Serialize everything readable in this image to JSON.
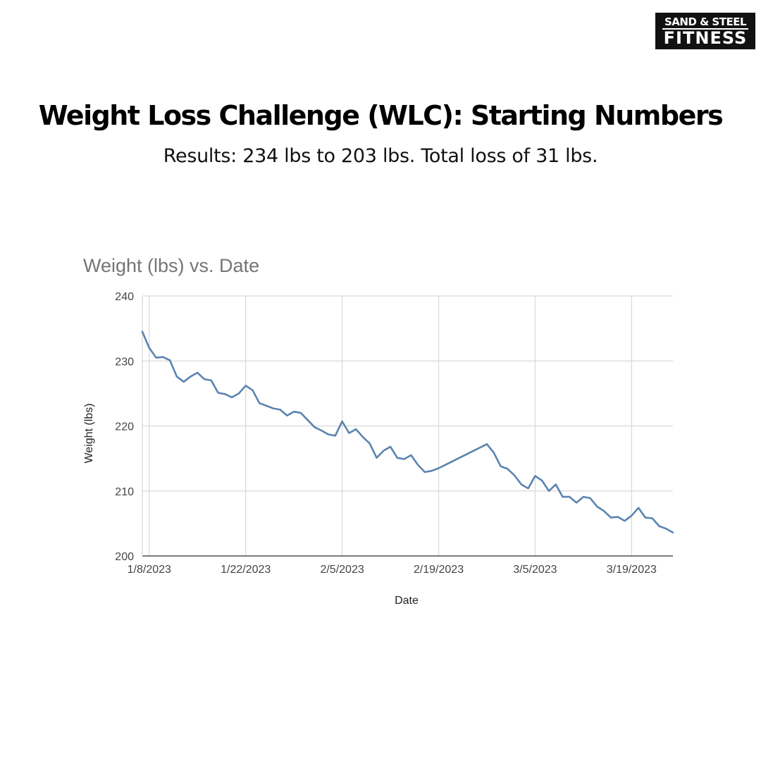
{
  "brand": {
    "line1": "SAND & STEEL",
    "line2": "FITNESS"
  },
  "header": {
    "title": "Weight Loss Challenge (WLC): Starting Numbers",
    "subtitle": "Results: 234 lbs to 203 lbs. Total loss of 31 lbs."
  },
  "colors": {
    "line": "#5b84b0",
    "grid": "#d9d9d9",
    "background": "#ffffff"
  },
  "chart_data": {
    "type": "line",
    "title": "Weight (lbs) vs. Date",
    "xlabel": "Date",
    "ylabel": "Weight (lbs)",
    "ylim": [
      200,
      240
    ],
    "xlim": [
      "2023-01-07",
      "2023-03-25"
    ],
    "yticks": [
      200,
      210,
      220,
      230,
      240
    ],
    "xticks": [
      "1/8/2023",
      "1/22/2023",
      "2/5/2023",
      "2/19/2023",
      "3/5/2023",
      "3/19/2023"
    ],
    "grid": true,
    "legend": "none",
    "series": [
      {
        "x": [
          "2023-01-07",
          "2023-01-08",
          "2023-01-09",
          "2023-01-10",
          "2023-01-11",
          "2023-01-12",
          "2023-01-13",
          "2023-01-14",
          "2023-01-15",
          "2023-01-16",
          "2023-01-17",
          "2023-01-18",
          "2023-01-19",
          "2023-01-20",
          "2023-01-21",
          "2023-01-22",
          "2023-01-23",
          "2023-01-24",
          "2023-01-25",
          "2023-01-26",
          "2023-01-27",
          "2023-01-28",
          "2023-01-29",
          "2023-01-30",
          "2023-01-31",
          "2023-02-01",
          "2023-02-02",
          "2023-02-03",
          "2023-02-04",
          "2023-02-05",
          "2023-02-06",
          "2023-02-07",
          "2023-02-08",
          "2023-02-09",
          "2023-02-10",
          "2023-02-11",
          "2023-02-12",
          "2023-02-13",
          "2023-02-14",
          "2023-02-15",
          "2023-02-16",
          "2023-02-17",
          "2023-02-18",
          "2023-02-19",
          "2023-02-26",
          "2023-02-27",
          "2023-02-28",
          "2023-03-01",
          "2023-03-02",
          "2023-03-03",
          "2023-03-04",
          "2023-03-05",
          "2023-03-06",
          "2023-03-07",
          "2023-03-08",
          "2023-03-09",
          "2023-03-10",
          "2023-03-11",
          "2023-03-12",
          "2023-03-13",
          "2023-03-14",
          "2023-03-15",
          "2023-03-16",
          "2023-03-17",
          "2023-03-18",
          "2023-03-19",
          "2023-03-20",
          "2023-03-21",
          "2023-03-22",
          "2023-03-23",
          "2023-03-24",
          "2023-03-25"
        ],
        "y": [
          234.5,
          232.0,
          230.5,
          230.6,
          230.1,
          227.6,
          226.8,
          227.6,
          228.2,
          227.2,
          227.0,
          225.1,
          224.9,
          224.4,
          225.0,
          226.2,
          225.5,
          223.5,
          223.1,
          222.7,
          222.5,
          221.6,
          222.2,
          222.0,
          220.9,
          219.8,
          219.3,
          218.7,
          218.5,
          220.7,
          218.9,
          219.5,
          218.3,
          217.3,
          215.1,
          216.2,
          216.8,
          215.1,
          214.9,
          215.5,
          214.0,
          212.9,
          213.1,
          213.5,
          217.2,
          215.9,
          213.8,
          213.4,
          212.4,
          211.0,
          210.4,
          212.3,
          211.6,
          210.0,
          211.0,
          209.1,
          209.1,
          208.2,
          209.1,
          208.9,
          207.6,
          206.9,
          205.9,
          206.0,
          205.4,
          206.2,
          207.4,
          205.9,
          205.8,
          204.6,
          204.2,
          203.6
        ]
      }
    ]
  }
}
